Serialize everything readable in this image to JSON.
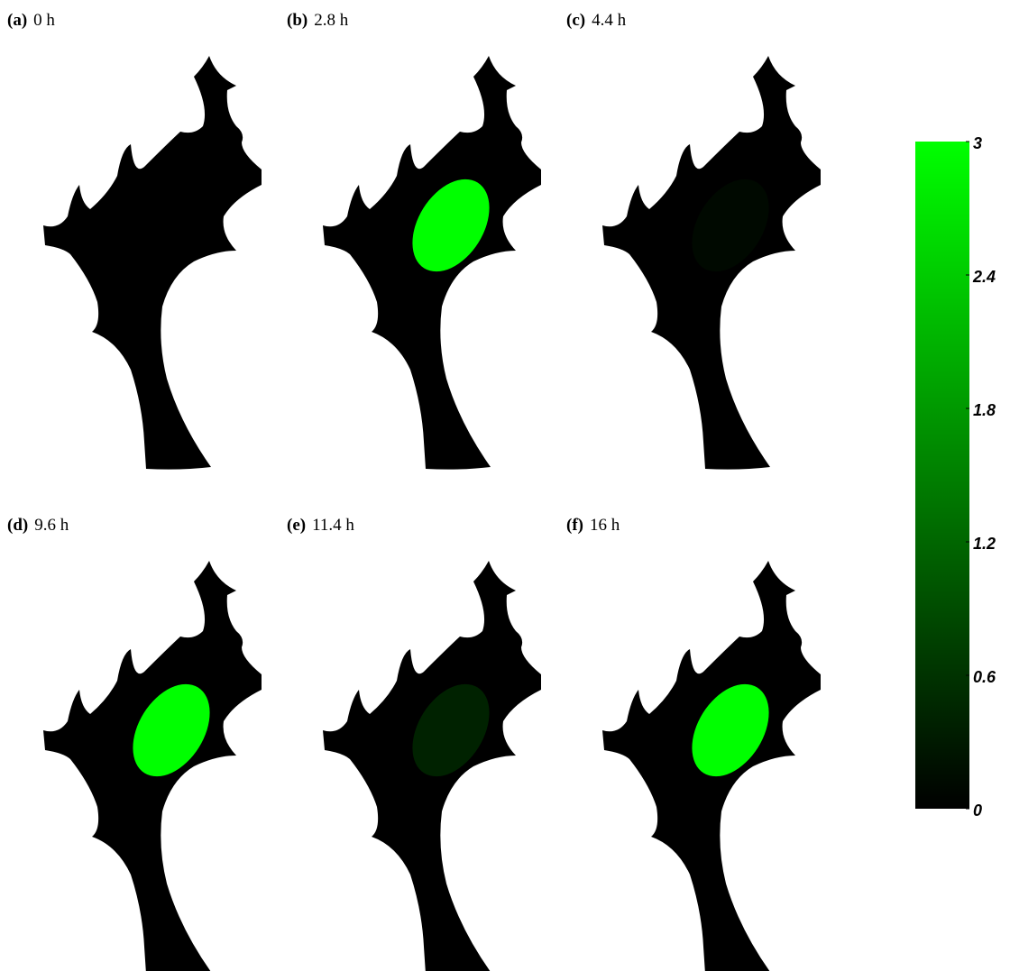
{
  "panels": [
    {
      "letter": "(a)",
      "time": "0 h",
      "value": 0
    },
    {
      "letter": "(b)",
      "time": "2.8 h",
      "value": 3
    },
    {
      "letter": "(c)",
      "time": "4.4 h",
      "value": 0.1
    },
    {
      "letter": "(d)",
      "time": "9.6 h",
      "value": 3
    },
    {
      "letter": "(e)",
      "time": "11.4 h",
      "value": 0.4
    },
    {
      "letter": "(f)",
      "time": "16 h",
      "value": 3
    }
  ],
  "colorbar": {
    "range": [
      0,
      3
    ],
    "ticks": [
      3,
      2.4,
      1.8,
      1.2,
      0.6,
      0
    ],
    "colors": [
      "#000000",
      "#00ff00"
    ]
  }
}
